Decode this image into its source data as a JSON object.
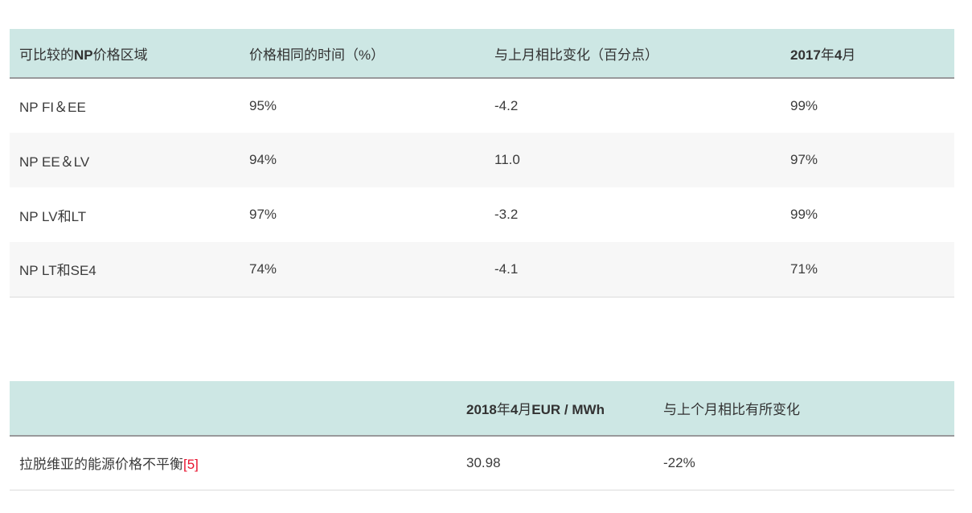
{
  "colors": {
    "header_bg": "#cde7e4",
    "alt_row_bg": "#f7f7f7",
    "header_border": "#98999b",
    "table_bottom_border": "#dcdcdc",
    "footnote_red": "#e8112d",
    "text": "#3b3b3b"
  },
  "table1": {
    "header": {
      "region": [
        {
          "t": "可比较的",
          "b": false
        },
        {
          "t": "NP",
          "b": true
        },
        {
          "t": "价格区域",
          "b": false
        }
      ],
      "same_price_time": [
        {
          "t": "价格相同的时间（%）",
          "b": false
        }
      ],
      "change_vs_last_month": [
        {
          "t": "与上月相比变化（百分点）",
          "b": false
        }
      ],
      "april_2017": [
        {
          "t": "2017",
          "b": true
        },
        {
          "t": "年",
          "b": false
        },
        {
          "t": "4",
          "b": true
        },
        {
          "t": "月",
          "b": false
        }
      ]
    },
    "rows": [
      {
        "region": "NP FI＆EE",
        "same_price_time": "95%",
        "change_vs_last_month": "-4.2",
        "april_2017": "99%"
      },
      {
        "region": "NP EE＆LV",
        "same_price_time": "94%",
        "change_vs_last_month": "11.0",
        "april_2017": "97%"
      },
      {
        "region": "NP LV和LT",
        "same_price_time": "97%",
        "change_vs_last_month": "-3.2",
        "april_2017": "99%"
      },
      {
        "region": "NP LT和SE4",
        "same_price_time": "74%",
        "change_vs_last_month": "-4.1",
        "april_2017": "71%"
      }
    ]
  },
  "table2": {
    "header": {
      "label": [],
      "april_2018_eur_mwh": [
        {
          "t": "2018",
          "b": true
        },
        {
          "t": "年",
          "b": false
        },
        {
          "t": "4",
          "b": true
        },
        {
          "t": "月",
          "b": false
        },
        {
          "t": "EUR / MWh",
          "b": true
        }
      ],
      "change_vs_last_month": [
        {
          "t": "与上个月相比有所变化",
          "b": false
        }
      ]
    },
    "rows": [
      {
        "label": "拉脱维亚的能源价格不平衡",
        "footnote": "[5]",
        "april_2018_eur_mwh": "30.98",
        "change_vs_last_month": "-22%"
      }
    ]
  }
}
